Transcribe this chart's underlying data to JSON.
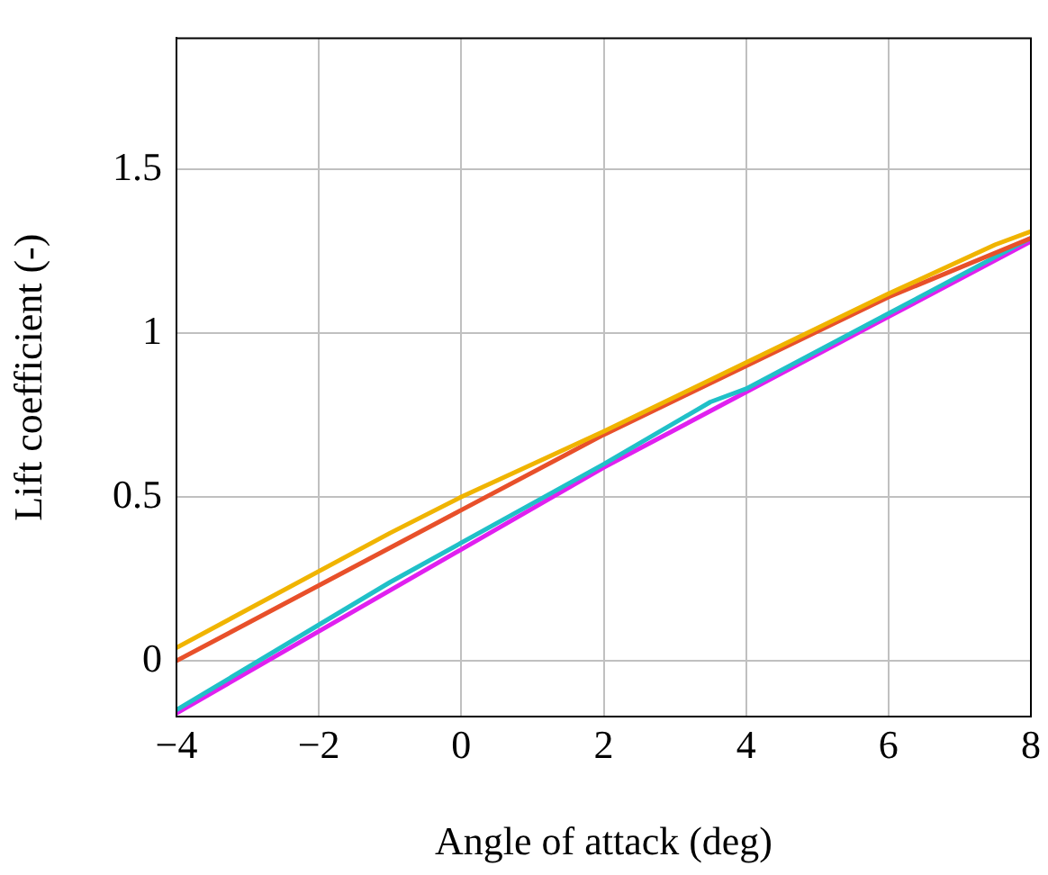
{
  "chart_data": {
    "type": "line",
    "xlabel": "Angle of attack (deg)",
    "ylabel": "Lift coefficient (-)",
    "xlim": [
      -4,
      8
    ],
    "xticks": [
      -4,
      -2,
      0,
      2,
      4,
      6,
      8
    ],
    "ylim": [
      -0.17,
      1.9
    ],
    "yticks": [
      0,
      0.5,
      1,
      1.5
    ],
    "grid": true,
    "legend": false,
    "marker": "none",
    "line_style": "solid",
    "series": [
      {
        "color": "#f0b400",
        "x": [
          -4,
          -1,
          0,
          2,
          4,
          6,
          7.5,
          8
        ],
        "values": [
          0.04,
          0.39,
          0.5,
          0.7,
          0.91,
          1.12,
          1.27,
          1.31
        ]
      },
      {
        "color": "#e8502a",
        "x": [
          -4,
          0,
          2,
          4,
          6,
          8
        ],
        "values": [
          0.0,
          0.46,
          0.69,
          0.9,
          1.11,
          1.29
        ]
      },
      {
        "color": "#20c0c8",
        "x": [
          -4,
          -1,
          2,
          3.5,
          4,
          6,
          8
        ],
        "values": [
          -0.15,
          0.24,
          0.6,
          0.79,
          0.83,
          1.06,
          1.29
        ]
      },
      {
        "color": "#e020f0",
        "x": [
          -4,
          0,
          2,
          4,
          6,
          8
        ],
        "values": [
          -0.16,
          0.34,
          0.59,
          0.82,
          1.05,
          1.28
        ]
      }
    ]
  }
}
